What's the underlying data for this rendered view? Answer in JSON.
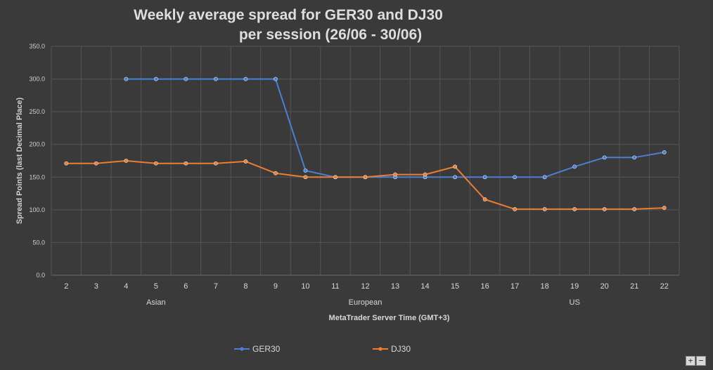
{
  "chart_data": {
    "type": "line",
    "title_line1": "Weekly average spread for GER30 and DJ30",
    "title_line2": "per session (26/06 - 30/06)",
    "xlabel": "MetaTrader Server Time (GMT+3)",
    "ylabel": "Spread Points  (last Decimal Place)",
    "ylim": [
      0,
      350
    ],
    "yticks": [
      "0.0",
      "50.0",
      "100.0",
      "150.0",
      "200.0",
      "250.0",
      "300.0",
      "350.0"
    ],
    "categories": [
      "2",
      "3",
      "4",
      "5",
      "6",
      "7",
      "8",
      "9",
      "10",
      "11",
      "12",
      "13",
      "14",
      "15",
      "16",
      "17",
      "18",
      "19",
      "20",
      "21",
      "22"
    ],
    "sessions": [
      {
        "label": "Asian",
        "from": "2",
        "to": "8"
      },
      {
        "label": "European",
        "from": "9",
        "to": "15"
      },
      {
        "label": "US",
        "from": "16",
        "to": "22"
      }
    ],
    "grid": true,
    "legend_position": "bottom",
    "series": [
      {
        "name": "GER30",
        "color": "#4a7fd4",
        "values": [
          null,
          null,
          300,
          300,
          300,
          300,
          300,
          300,
          160,
          150,
          150,
          150,
          150,
          150,
          150,
          150,
          150,
          166,
          180,
          180,
          188
        ]
      },
      {
        "name": "DJ30",
        "color": "#ed7d31",
        "values": [
          171,
          171,
          175,
          171,
          171,
          171,
          174,
          156,
          150,
          150,
          150,
          154,
          154,
          166,
          116,
          101,
          101,
          101,
          101,
          101,
          103
        ]
      }
    ]
  },
  "controls": {
    "zoom_in": "+",
    "zoom_out": "−"
  }
}
